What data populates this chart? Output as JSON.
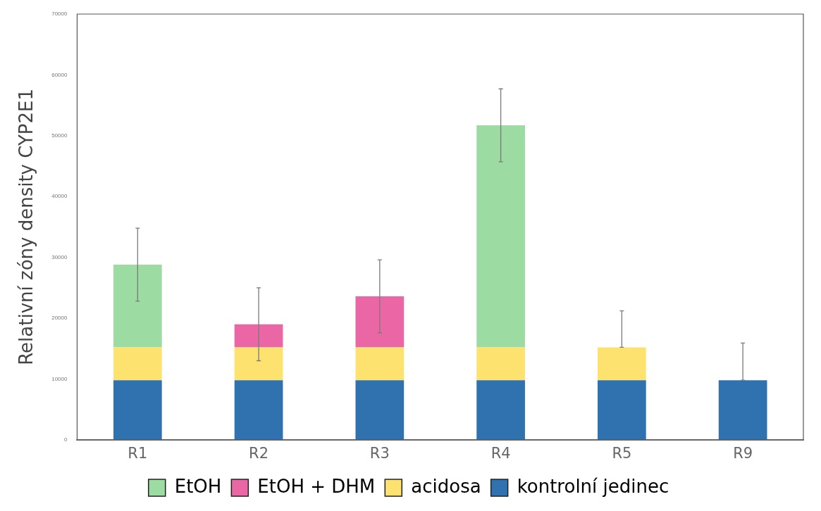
{
  "chart_data": {
    "type": "bar",
    "stacked": true,
    "ylabel": "Relativní zóny density CYP2E1",
    "categories": [
      "R1",
      "R2",
      "R3",
      "R4",
      "R5",
      "R9"
    ],
    "series": [
      {
        "name": "kontrolní jedinec",
        "color": "#3071b0",
        "values": [
          9800,
          9800,
          9800,
          9800,
          9800,
          9800
        ],
        "errors": [
          null,
          null,
          null,
          null,
          null,
          [
            9800,
            15900
          ]
        ]
      },
      {
        "name": "acidosa",
        "color": "#fee270",
        "values": [
          5400,
          5400,
          5400,
          5400,
          5400,
          null
        ],
        "errors": [
          null,
          null,
          null,
          null,
          [
            15200,
            21200
          ],
          null
        ]
      },
      {
        "name": "EtOH + DHM",
        "color": "#ea66a4",
        "values": [
          null,
          3800,
          8400,
          null,
          null,
          null
        ],
        "errors": [
          null,
          6000,
          6000,
          null,
          null,
          null
        ]
      },
      {
        "name": "EtOH",
        "color": "#9cdba1",
        "values": [
          13600,
          null,
          null,
          36500,
          null,
          null
        ],
        "errors": [
          6000,
          null,
          null,
          6000,
          null,
          null
        ]
      }
    ],
    "ylim": [
      0,
      70000
    ],
    "yticks": [
      0,
      10000,
      20000,
      30000,
      40000,
      50000,
      60000,
      70000
    ],
    "grid": false,
    "legend": "bottom"
  }
}
